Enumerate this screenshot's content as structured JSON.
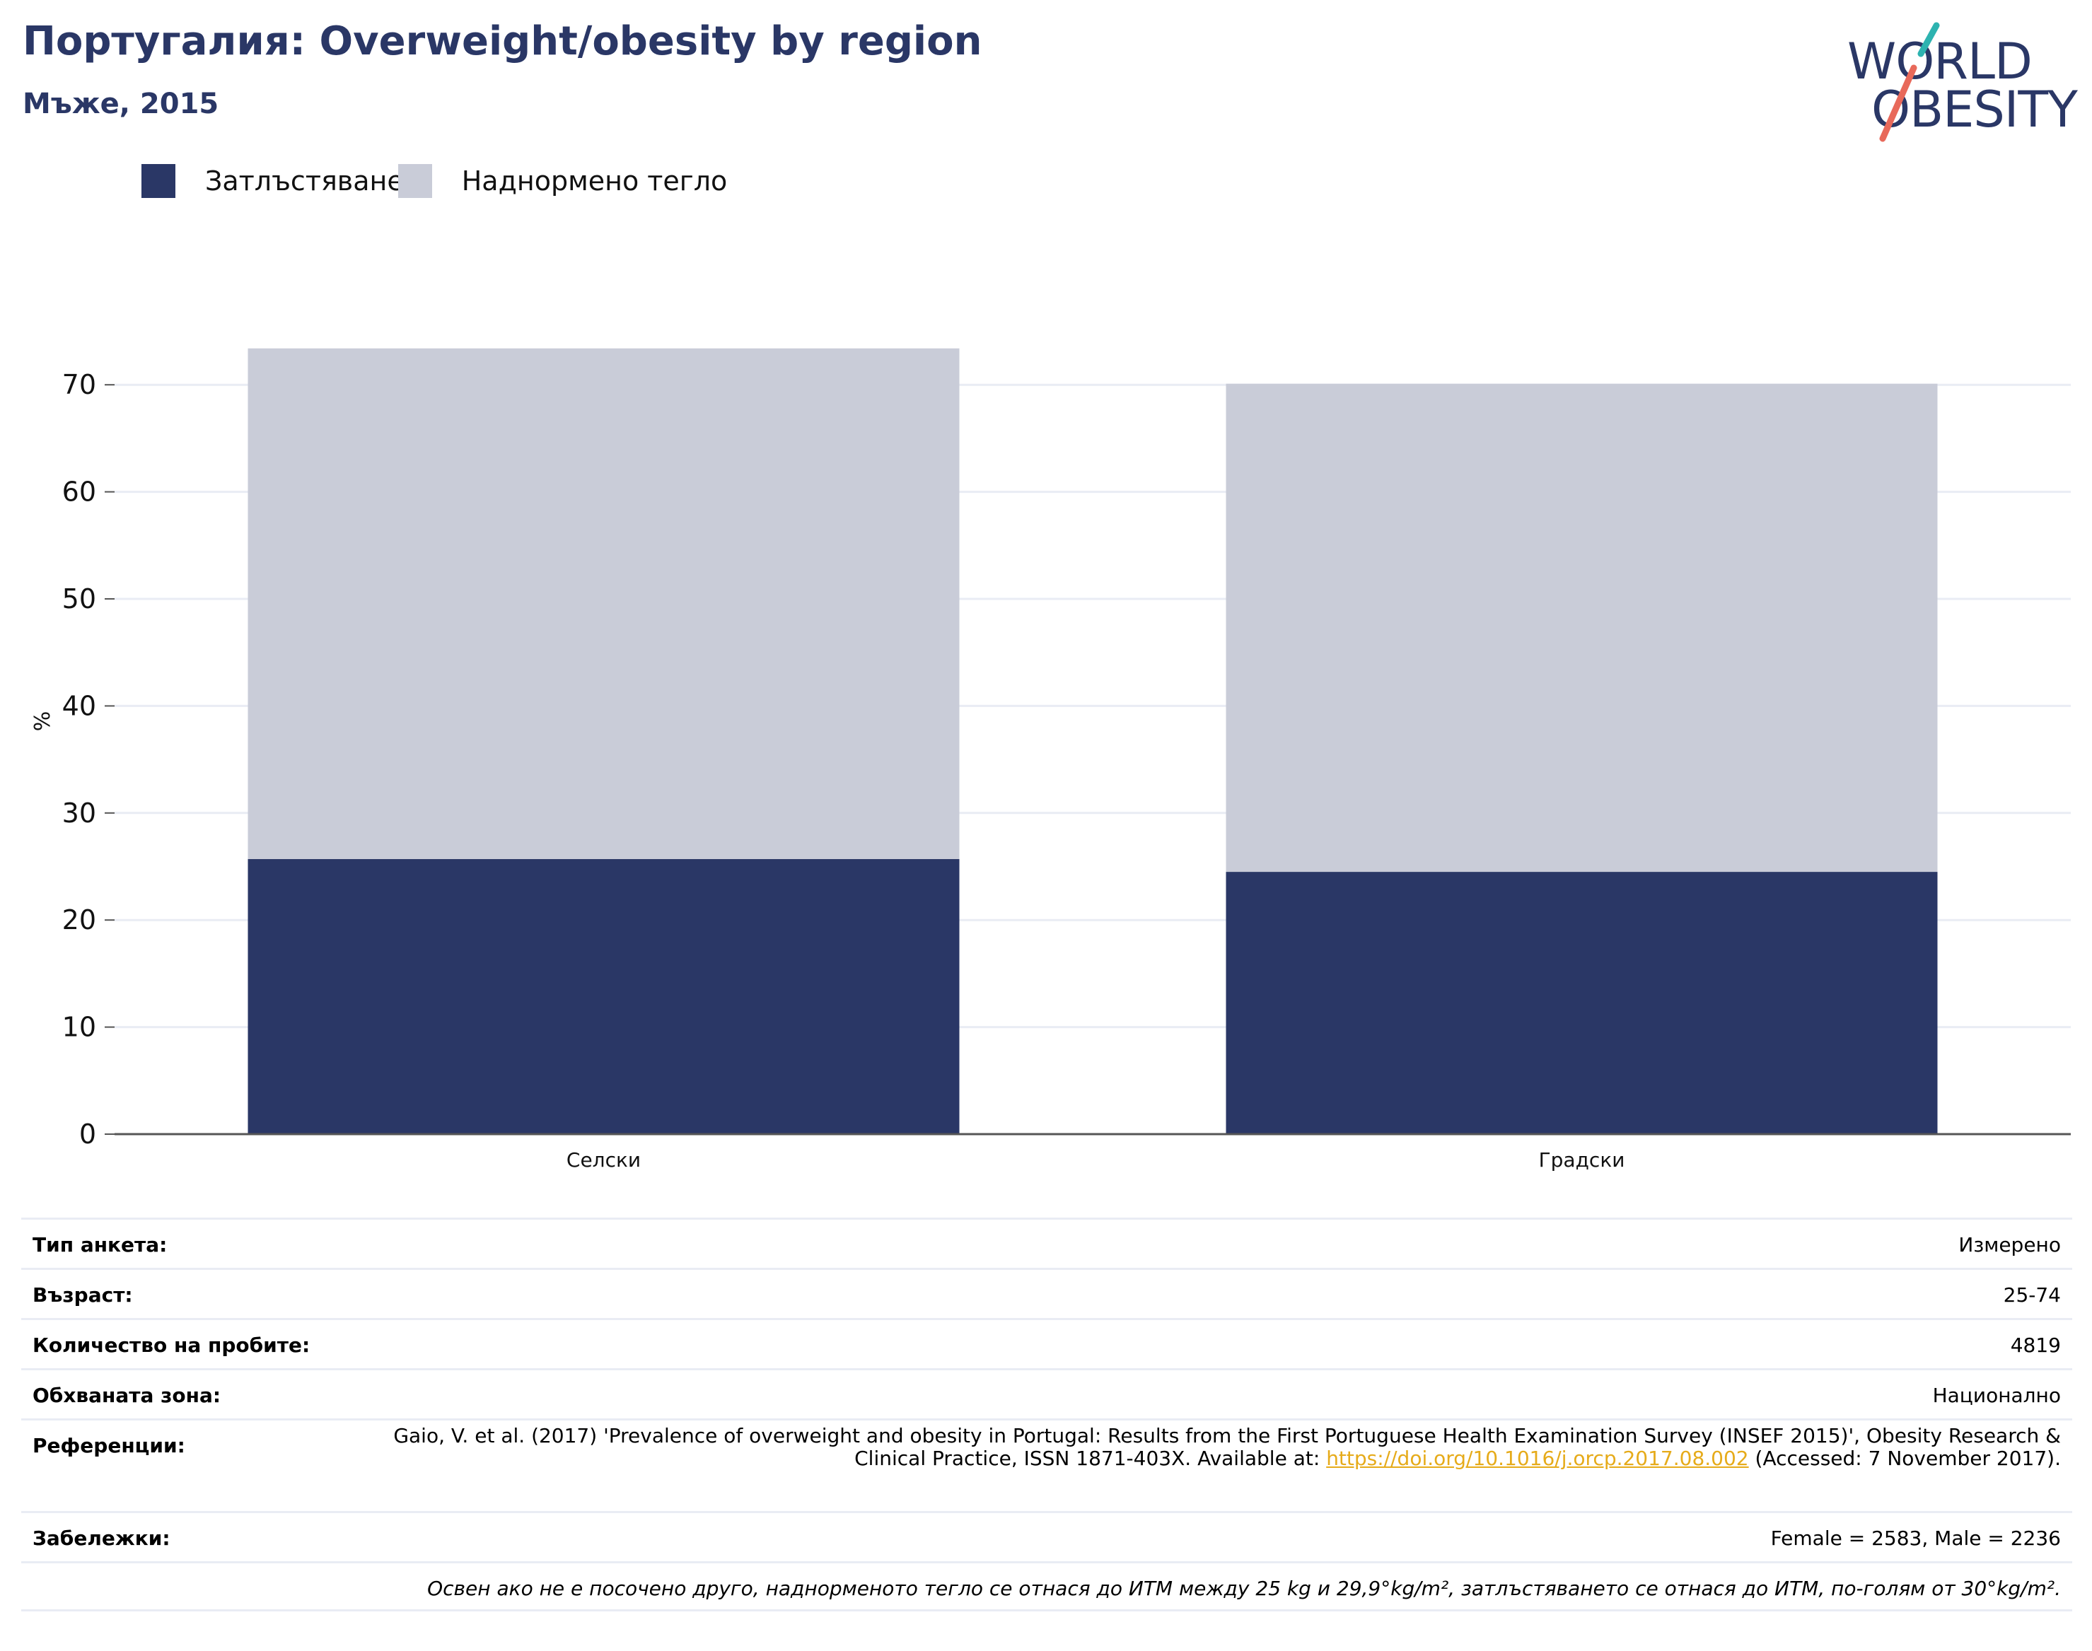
{
  "header": {
    "title": "Португалия: Overweight/obesity by region",
    "subtitle": "Мъже, 2015"
  },
  "logo": {
    "line1": "WORLD",
    "line2": "OBESITY",
    "colors": {
      "text": "#2a3766",
      "teal": "#2db3b0",
      "coral": "#e8695a"
    }
  },
  "colors": {
    "obesity": "#2a3766",
    "overweight": "#c9ccd8",
    "grid": "#e9ecf4",
    "axis": "#555555"
  },
  "chart_data": {
    "type": "bar",
    "stacked": true,
    "title": "Португалия: Overweight/obesity by region",
    "subtitle": "Мъже, 2015",
    "categories": [
      "Селски",
      "Градски"
    ],
    "series": [
      {
        "name": "Затлъстяване",
        "values": [
          25.7,
          24.5
        ]
      },
      {
        "name": "Наднормено тегло",
        "values": [
          47.7,
          45.6
        ]
      }
    ],
    "ylabel": "%",
    "xlabel": "",
    "ylim": [
      0,
      75
    ],
    "yticks": [
      0,
      10,
      20,
      30,
      40,
      50,
      60,
      70
    ],
    "grid": true,
    "legend_position": "top-left"
  },
  "info": {
    "rows": [
      {
        "key": "Тип анкета:",
        "value": "Измерено"
      },
      {
        "key": "Възраст:",
        "value": "25-74"
      },
      {
        "key": "Количество на пробите:",
        "value": "4819"
      },
      {
        "key": "Обхваната зона:",
        "value": "Национално"
      }
    ],
    "reference": {
      "key": "Референции:",
      "text_before": "Gaio, V. et al. (2017) 'Prevalence of overweight and obesity in Portugal: Results from the First Portuguese Health Examination Survey (INSEF 2015)', Obesity Research & Clinical Practice, ISSN 1871-403X. Available at: ",
      "link": "https://doi.org/10.1016/j.orcp.2017.08.002",
      "text_after": " (Accessed: 7 November 2017)."
    },
    "notes": {
      "key": "Забележки:",
      "value": "Female = 2583, Male = 2236"
    },
    "footnote": "Освен ако не е посочено друго, наднорменото тегло се отнася до ИТМ между 25 kg и 29,9°kg/m², затлъстяването се отнася до ИТМ, по-голям от 30°kg/m²."
  }
}
